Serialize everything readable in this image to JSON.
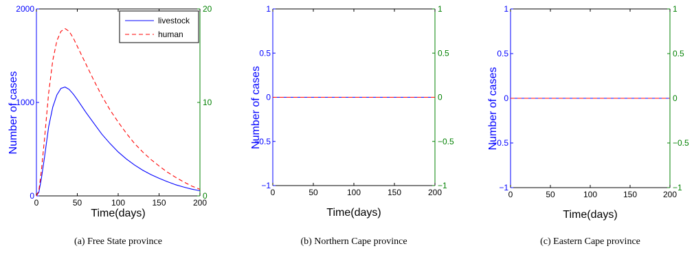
{
  "chart_data": [
    {
      "type": "line",
      "caption": "(a)  Free State province",
      "xlabel": "Time(days)",
      "ylabel": "Number of cases",
      "xlim": [
        0,
        200
      ],
      "xticks": [
        "0",
        "50",
        "100",
        "150",
        "200"
      ],
      "ylim_left": [
        0,
        2000
      ],
      "yticks_left": [
        "0",
        "1000",
        "2000"
      ],
      "ylim_right": [
        0,
        20
      ],
      "yticks_right": [
        "0",
        "10",
        "20"
      ],
      "legend": {
        "position": "top-right",
        "entries": [
          "livestock",
          "human"
        ]
      },
      "series": [
        {
          "name": "livestock",
          "axis": "left",
          "color": "#0000ff",
          "style": "solid",
          "x": [
            0,
            3,
            6,
            10,
            15,
            20,
            25,
            30,
            35,
            40,
            45,
            50,
            60,
            70,
            80,
            90,
            100,
            110,
            120,
            130,
            140,
            150,
            160,
            170,
            180,
            190,
            200
          ],
          "y": [
            0,
            40,
            180,
            420,
            740,
            950,
            1080,
            1150,
            1165,
            1140,
            1090,
            1030,
            900,
            780,
            660,
            560,
            470,
            395,
            330,
            275,
            228,
            188,
            152,
            120,
            95,
            72,
            55
          ]
        },
        {
          "name": "human",
          "axis": "right",
          "color": "#ff0000",
          "style": "dashed",
          "x": [
            0,
            3,
            6,
            10,
            15,
            20,
            25,
            30,
            35,
            40,
            45,
            50,
            60,
            70,
            80,
            90,
            100,
            110,
            120,
            130,
            140,
            150,
            160,
            170,
            180,
            190,
            200
          ],
          "y": [
            0,
            0.6,
            2.6,
            6.2,
            11.0,
            14.5,
            16.6,
            17.6,
            17.9,
            17.6,
            16.9,
            16.0,
            14.2,
            12.4,
            10.7,
            9.2,
            7.9,
            6.7,
            5.6,
            4.7,
            3.9,
            3.2,
            2.55,
            2.0,
            1.5,
            1.05,
            0.7
          ]
        }
      ]
    },
    {
      "type": "line",
      "caption": "(b)  Northern Cape province",
      "xlabel": "Time(days)",
      "ylabel": "Number of cases",
      "xlim": [
        0,
        200
      ],
      "xticks": [
        "0",
        "50",
        "100",
        "150",
        "200"
      ],
      "ylim_left": [
        -1,
        1
      ],
      "yticks_left": [
        "−1",
        "−0.5",
        "0",
        "0.5",
        "1"
      ],
      "ylim_right": [
        -1,
        1
      ],
      "yticks_right": [
        "−1",
        "−0.5",
        "0",
        "0.5",
        "1"
      ],
      "series": [
        {
          "axis": "left",
          "color": "#0000ff",
          "style": "solid",
          "x": [
            0,
            200
          ],
          "y": [
            0,
            0
          ]
        },
        {
          "axis": "right",
          "color": "#ff0000",
          "style": "dashed",
          "x": [
            0,
            200
          ],
          "y": [
            0,
            0
          ]
        }
      ]
    },
    {
      "type": "line",
      "caption": "(c)  Eastern Cape province",
      "xlabel": "Time(days)",
      "ylabel": "Number of cases",
      "xlim": [
        0,
        200
      ],
      "xticks": [
        "0",
        "50",
        "100",
        "150",
        "200"
      ],
      "ylim_left": [
        -1,
        1
      ],
      "yticks_left": [
        "−1",
        "−0.5",
        "0",
        "0.5",
        "1"
      ],
      "ylim_right": [
        -1,
        1
      ],
      "yticks_right": [
        "−1",
        "−0.5",
        "0",
        "0.5",
        "1"
      ],
      "series": [
        {
          "axis": "left",
          "color": "#0000ff",
          "style": "solid",
          "x": [
            0,
            200
          ],
          "y": [
            0,
            0
          ]
        },
        {
          "axis": "right",
          "color": "#ff0000",
          "style": "dashed",
          "x": [
            0,
            200
          ],
          "y": [
            0,
            0
          ]
        }
      ]
    }
  ]
}
